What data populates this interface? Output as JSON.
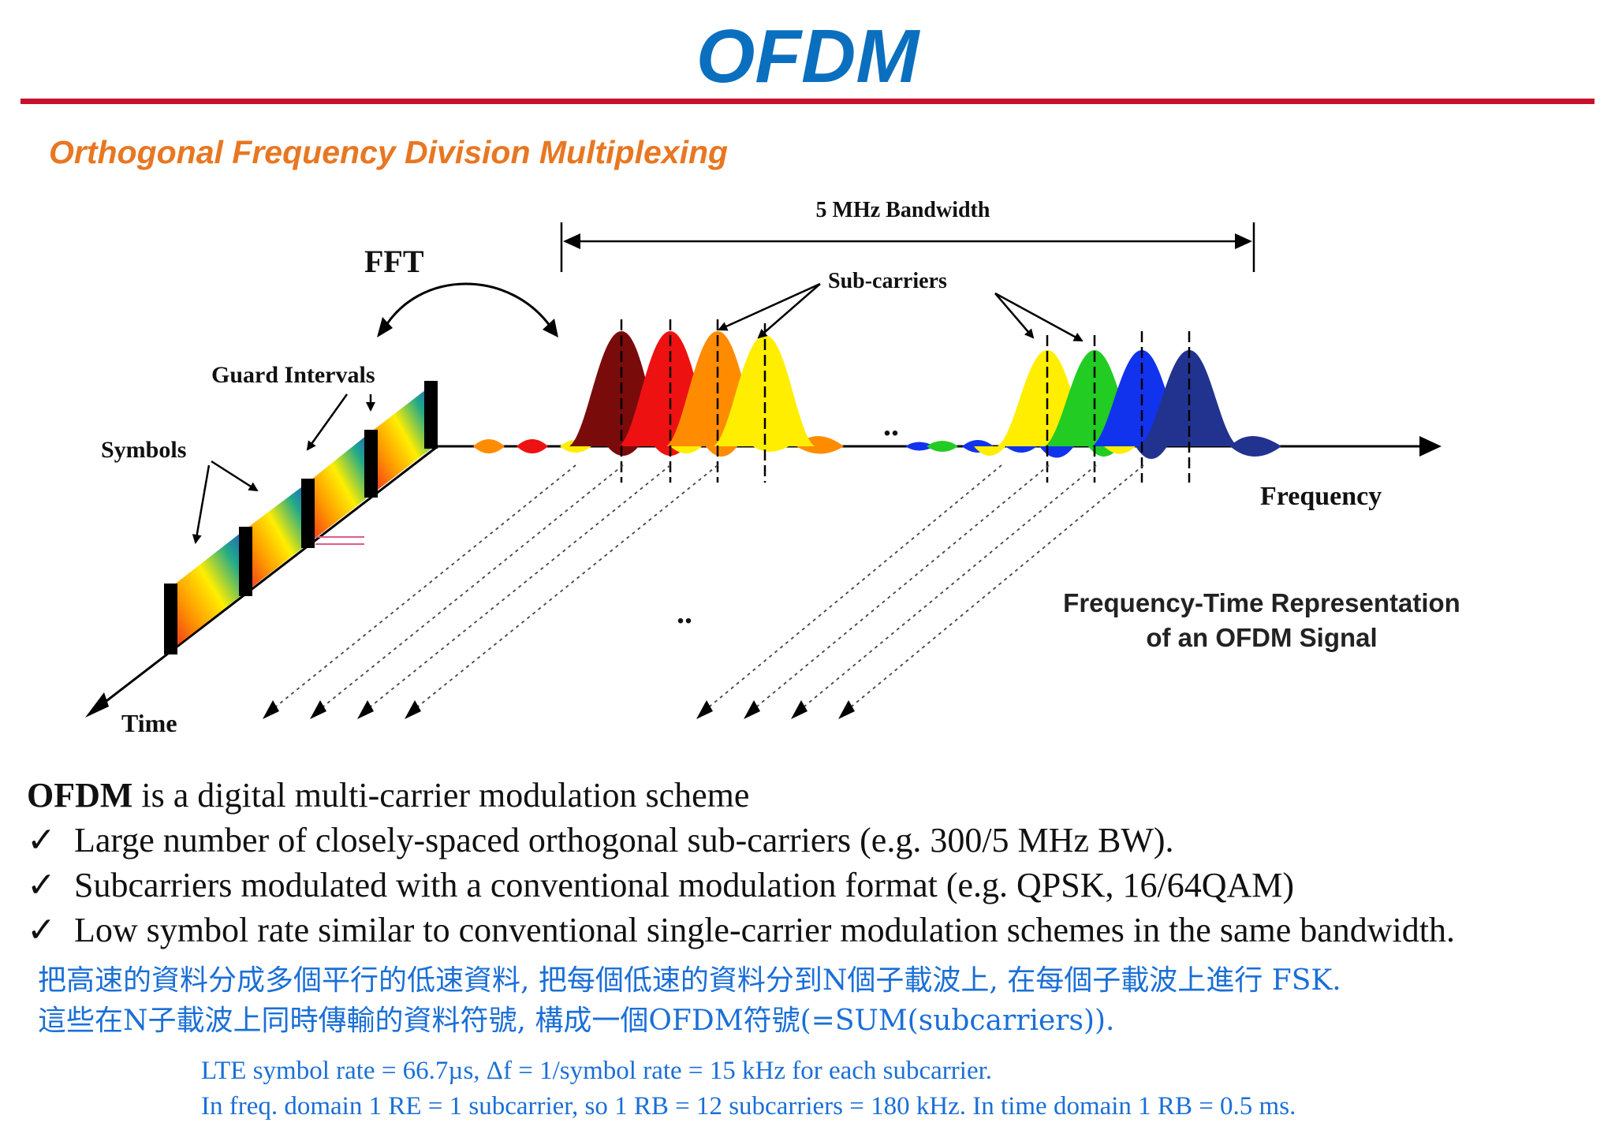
{
  "title": "OFDM",
  "subtitle": "Orthogonal Frequency Division Multiplexing",
  "diagram": {
    "bandwidth_label": "5 MHz Bandwidth",
    "fft_label": "FFT",
    "subcarriers_label": "Sub-carriers",
    "guard_intervals_label": "Guard Intervals",
    "symbols_label": "Symbols",
    "frequency_label": "Frequency",
    "time_label": "Time",
    "ellipsis_1": "..",
    "ellipsis_2": "..",
    "representation_line1": "Frequency-Time Representation",
    "representation_line2": "of an OFDM Signal",
    "colors": {
      "left_group": [
        "#7a0b0b",
        "#ee1111",
        "#ff8c00",
        "#ffee00"
      ],
      "right_group": [
        "#ffee00",
        "#22cc22",
        "#1133ee",
        "#22338f"
      ]
    }
  },
  "intro": {
    "bold": "OFDM",
    "rest": " is a digital multi-carrier modulation scheme"
  },
  "check_mark": "✓",
  "bullets": [
    "Large number of closely-spaced orthogonal sub-carriers (e.g. 300/5 MHz BW).",
    "Subcarriers modulated with a conventional modulation format (e.g. QPSK, 16/64QAM)",
    "Low symbol rate similar to conventional single-carrier modulation schemes in the same bandwidth."
  ],
  "chinese_lines": [
    "把高速的資料分成多個平行的低速資料, 把每個低速的資料分到N個子載波上, 在每個子載波上進行 FSK.",
    "這些在N子載波上同時傳輸的資料符號, 構成一個OFDM符號(=SUM(subcarriers))."
  ],
  "notes": [
    "LTE symbol rate  = 66.7µs, Δf = 1/symbol rate = 15 kHz for each subcarrier.",
    "In freq. domain 1 RE = 1 subcarrier, so 1 RB = 12 subcarriers = 180 kHz. In time domain 1 RB = 0.5 ms."
  ]
}
